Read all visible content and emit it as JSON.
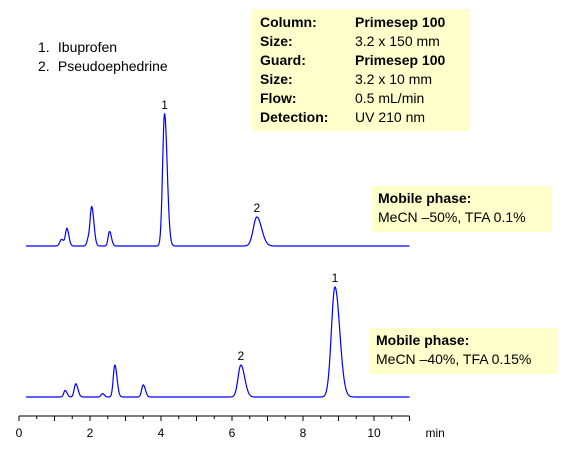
{
  "legend": [
    {
      "num": "1.",
      "name": "Ibuprofen"
    },
    {
      "num": "2.",
      "name": "Pseudoephedrine"
    }
  ],
  "conditions": [
    {
      "key": "Column:",
      "value": "Primesep 100",
      "bold": true
    },
    {
      "key": "Size:",
      "value": "3.2 x 150 mm",
      "bold": false
    },
    {
      "key": "Guard:",
      "value": "Primesep 100",
      "bold": true
    },
    {
      "key": "Size:",
      "value": "3.2 x 10 mm",
      "bold": false
    },
    {
      "key": "Flow:",
      "value": "0.5 mL/min",
      "bold": false
    },
    {
      "key": "Detection:",
      "value": "UV 210 nm",
      "bold": false
    }
  ],
  "mobile_phase_1": {
    "title": "Mobile phase:",
    "text": "MeCN –50%, TFA 0.1%"
  },
  "mobile_phase_2": {
    "title": "Mobile phase:",
    "text": "MeCN –40%, TFA 0.15%"
  },
  "chart_data": {
    "type": "line",
    "xlabel": "min",
    "xlim": [
      0,
      11
    ],
    "xticks": [
      0,
      2,
      4,
      6,
      8,
      10
    ],
    "line_color": "#0000ff",
    "series": [
      {
        "peaks": [
          {
            "t": 1.2,
            "h": 0.05,
            "w": 0.05
          },
          {
            "t": 1.35,
            "h": 0.13,
            "w": 0.04
          },
          {
            "t": 1.95,
            "h": 0.05,
            "w": 0.04
          },
          {
            "t": 2.05,
            "h": 0.29,
            "w": 0.045
          },
          {
            "t": 2.55,
            "h": 0.11,
            "w": 0.04
          },
          {
            "t": 4.1,
            "h": 1.0,
            "w": 0.055
          },
          {
            "t": 6.7,
            "h": 0.22,
            "w": 0.1
          }
        ],
        "labels": [
          {
            "t": 4.1,
            "text": "1"
          },
          {
            "t": 6.7,
            "text": "2"
          }
        ]
      },
      {
        "peaks": [
          {
            "t": 1.3,
            "h": 0.06,
            "w": 0.04
          },
          {
            "t": 1.6,
            "h": 0.12,
            "w": 0.045
          },
          {
            "t": 2.35,
            "h": 0.03,
            "w": 0.04
          },
          {
            "t": 2.7,
            "h": 0.29,
            "w": 0.045
          },
          {
            "t": 3.5,
            "h": 0.11,
            "w": 0.045
          },
          {
            "t": 6.25,
            "h": 0.29,
            "w": 0.08
          },
          {
            "t": 8.9,
            "h": 1.0,
            "w": 0.1
          }
        ],
        "labels": [
          {
            "t": 6.25,
            "text": "2"
          },
          {
            "t": 8.9,
            "text": "1"
          }
        ]
      }
    ]
  }
}
